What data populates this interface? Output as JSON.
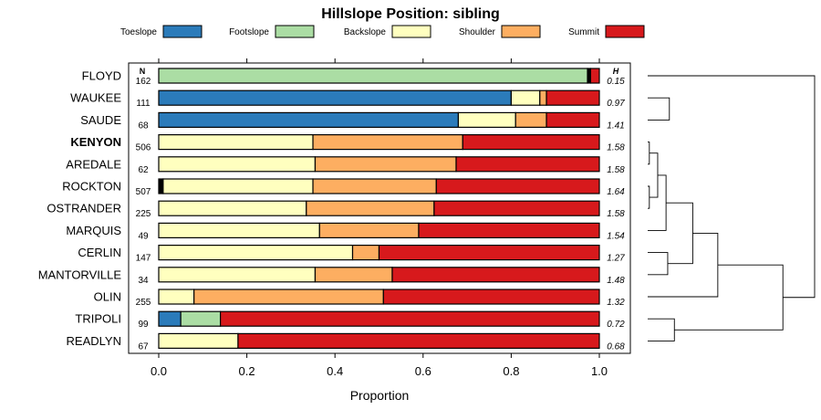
{
  "chart_data": {
    "type": "bar",
    "title": "Hillslope Position: sibling",
    "xlabel": "Proportion",
    "ylabel": "",
    "xlim": [
      0,
      1
    ],
    "x_ticks": [
      "0.0",
      "0.2",
      "0.4",
      "0.6",
      "0.8",
      "1.0"
    ],
    "n_header": "N",
    "h_header": "H",
    "legend": [
      {
        "name": "Toeslope",
        "color": "#2b7bba"
      },
      {
        "name": "Footslope",
        "color": "#abdda4"
      },
      {
        "name": "Backslope",
        "color": "#ffffbf"
      },
      {
        "name": "Shoulder",
        "color": "#fdae61"
      },
      {
        "name": "Summit",
        "color": "#d7191c"
      }
    ],
    "rows": [
      {
        "label": "FLOYD",
        "n": "162",
        "h": "0.15",
        "bold": false,
        "values": [
          0.0,
          0.98,
          0.0,
          0.0,
          0.02
        ],
        "unknown": 0.007
      },
      {
        "label": "WAUKEE",
        "n": "111",
        "h": "0.97",
        "bold": false,
        "values": [
          0.8,
          0.0,
          0.065,
          0.015,
          0.12
        ],
        "unknown": 0
      },
      {
        "label": "SAUDE",
        "n": "68",
        "h": "1.41",
        "bold": false,
        "values": [
          0.68,
          0.0,
          0.13,
          0.07,
          0.12
        ],
        "unknown": 0
      },
      {
        "label": "KENYON",
        "n": "506",
        "h": "1.58",
        "bold": true,
        "values": [
          0.0,
          0.0,
          0.35,
          0.34,
          0.31
        ],
        "unknown": 0
      },
      {
        "label": "AREDALE",
        "n": "62",
        "h": "1.58",
        "bold": false,
        "values": [
          0.0,
          0.0,
          0.355,
          0.32,
          0.325
        ],
        "unknown": 0
      },
      {
        "label": "ROCKTON",
        "n": "507",
        "h": "1.64",
        "bold": false,
        "values": [
          0.0,
          0.0,
          0.34,
          0.28,
          0.37
        ],
        "unknown": 0.01
      },
      {
        "label": "OSTRANDER",
        "n": "225",
        "h": "1.58",
        "bold": false,
        "values": [
          0.0,
          0.0,
          0.335,
          0.29,
          0.375
        ],
        "unknown": 0
      },
      {
        "label": "MARQUIS",
        "n": "49",
        "h": "1.54",
        "bold": false,
        "values": [
          0.0,
          0.0,
          0.365,
          0.225,
          0.41
        ],
        "unknown": 0
      },
      {
        "label": "CERLIN",
        "n": "147",
        "h": "1.27",
        "bold": false,
        "values": [
          0.0,
          0.0,
          0.44,
          0.06,
          0.5
        ],
        "unknown": 0
      },
      {
        "label": "MANTORVILLE",
        "n": "34",
        "h": "1.48",
        "bold": false,
        "values": [
          0.0,
          0.0,
          0.355,
          0.175,
          0.47
        ],
        "unknown": 0
      },
      {
        "label": "OLIN",
        "n": "255",
        "h": "1.32",
        "bold": false,
        "values": [
          0.0,
          0.0,
          0.08,
          0.43,
          0.49
        ],
        "unknown": 0
      },
      {
        "label": "TRIPOLI",
        "n": "99",
        "h": "0.72",
        "bold": false,
        "values": [
          0.05,
          0.09,
          0.0,
          0.0,
          0.86
        ],
        "unknown": 0
      },
      {
        "label": "READLYN",
        "n": "67",
        "h": "0.68",
        "bold": false,
        "values": [
          0.0,
          0.0,
          0.18,
          0.0,
          0.82
        ],
        "unknown": 0
      }
    ],
    "unknown_color": "#000000",
    "dendrogram": {
      "leaves": [
        "FLOYD",
        "WAUKEE",
        "SAUDE",
        "KENYON",
        "AREDALE",
        "ROCKTON",
        "OSTRANDER",
        "MARQUIS",
        "CERLIN",
        "MANTORVILLE",
        "OLIN",
        "TRIPOLI",
        "READLYN"
      ],
      "merges": [
        {
          "a": 3,
          "b": 4,
          "height": 0.01
        },
        {
          "a": 5,
          "b": 6,
          "height": 0.01
        },
        {
          "a": -1,
          "b": -2,
          "height": 0.06
        },
        {
          "a": 7,
          "b": -3,
          "height": 0.11
        },
        {
          "a": 8,
          "b": 9,
          "height": 0.12
        },
        {
          "a": 1,
          "b": 2,
          "height": 0.13
        },
        {
          "a": 11,
          "b": 12,
          "height": 0.16
        },
        {
          "a": -4,
          "b": -5,
          "height": 0.27
        },
        {
          "a": -8,
          "b": 10,
          "height": 0.42
        },
        {
          "a": -9,
          "b": -7,
          "height": 0.81
        },
        {
          "a": 0,
          "b": -10,
          "height": 1.0
        }
      ]
    }
  }
}
